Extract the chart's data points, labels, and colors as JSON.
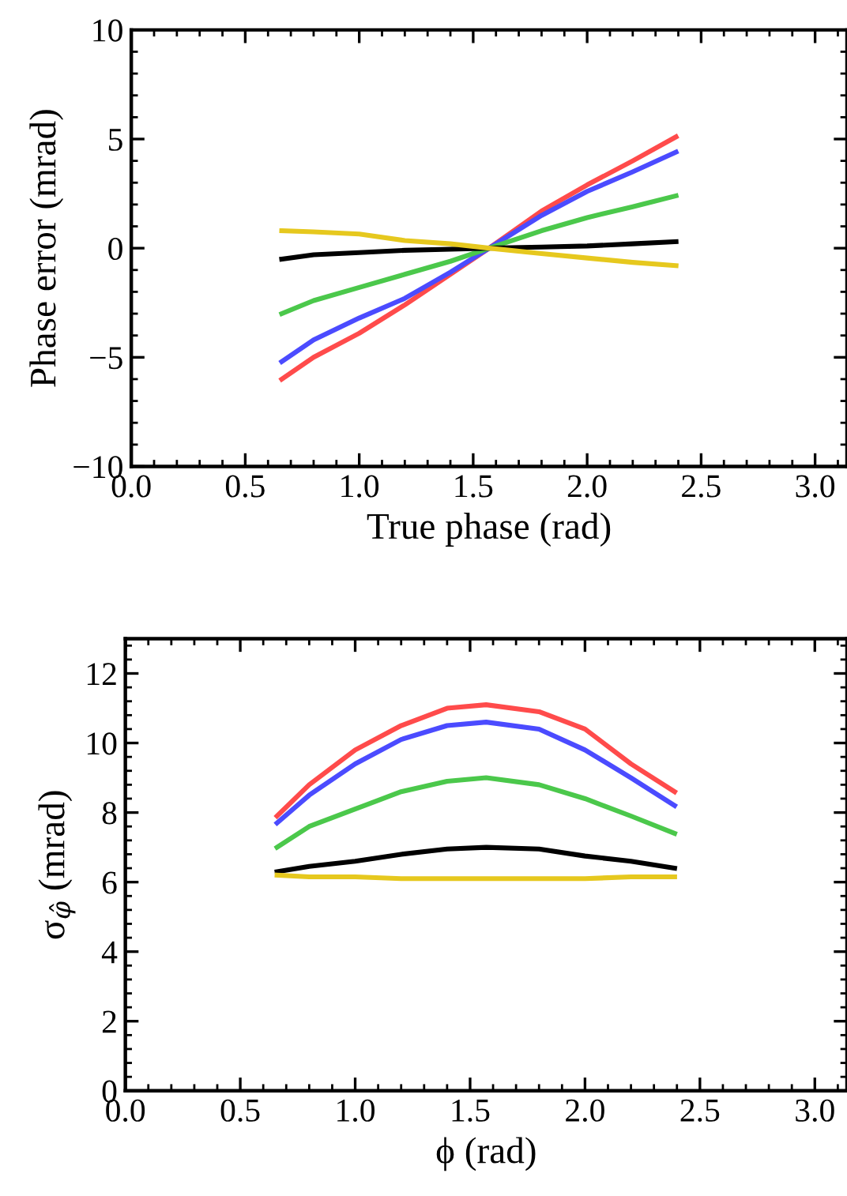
{
  "chart_data": [
    {
      "type": "line",
      "xlabel": "True phase (rad)",
      "ylabel": "Phase error (mrad)",
      "x": [
        0.66,
        0.8,
        1.0,
        1.2,
        1.4,
        1.57,
        1.8,
        2.0,
        2.2,
        2.39
      ],
      "series": [
        {
          "color": "#ff4b4b",
          "values": [
            -6.0,
            -5.0,
            -3.9,
            -2.6,
            -1.2,
            0,
            1.7,
            2.9,
            4.0,
            5.1
          ]
        },
        {
          "color": "#4b4bff",
          "values": [
            -5.2,
            -4.2,
            -3.2,
            -2.3,
            -1.1,
            0,
            1.5,
            2.6,
            3.5,
            4.4
          ]
        },
        {
          "color": "#4bc84b",
          "values": [
            -3.0,
            -2.4,
            -1.8,
            -1.2,
            -0.6,
            0,
            0.8,
            1.4,
            1.9,
            2.4
          ]
        },
        {
          "color": "#000000",
          "values": [
            -0.5,
            -0.3,
            -0.2,
            -0.1,
            -0.05,
            0,
            0.05,
            0.1,
            0.2,
            0.3
          ]
        },
        {
          "color": "#e6c81e",
          "values": [
            0.8,
            0.75,
            0.65,
            0.35,
            0.2,
            0,
            -0.25,
            -0.45,
            -0.65,
            -0.8
          ]
        }
      ],
      "xlim": [
        0,
        3.14
      ],
      "xticks": [
        {
          "value": 0,
          "label": "0.0"
        },
        {
          "value": 0.5,
          "label": "0.5"
        },
        {
          "value": 1,
          "label": "1.0"
        },
        {
          "value": 1.5,
          "label": "1.5"
        },
        {
          "value": 2,
          "label": "2.0"
        },
        {
          "value": 2.5,
          "label": "2.5"
        },
        {
          "value": 3,
          "label": "3.0"
        }
      ],
      "ylim": [
        -10,
        10
      ],
      "yticks": [
        {
          "value": -10,
          "label": "−10"
        },
        {
          "value": -5,
          "label": "−5"
        },
        0,
        5,
        10
      ],
      "grid": false,
      "legend": false,
      "line_style": "solid",
      "marker": "none"
    },
    {
      "type": "line",
      "xlabel": "ϕ (rad)",
      "ylabel": "σ$_{φ̂}$ (mrad)",
      "x": [
        0.66,
        0.8,
        1.0,
        1.2,
        1.4,
        1.57,
        1.8,
        2.0,
        2.2,
        2.39
      ],
      "series": [
        {
          "color": "#ff4b4b",
          "values": [
            7.9,
            8.8,
            9.8,
            10.5,
            11.0,
            11.1,
            10.9,
            10.4,
            9.4,
            8.6
          ]
        },
        {
          "color": "#4b4bff",
          "values": [
            7.7,
            8.5,
            9.4,
            10.1,
            10.5,
            10.6,
            10.4,
            9.8,
            9.0,
            8.2
          ]
        },
        {
          "color": "#4bc84b",
          "values": [
            7.0,
            7.6,
            8.1,
            8.6,
            8.9,
            9.0,
            8.8,
            8.4,
            7.9,
            7.4
          ]
        },
        {
          "color": "#000000",
          "values": [
            6.3,
            6.45,
            6.6,
            6.8,
            6.95,
            7.0,
            6.95,
            6.75,
            6.6,
            6.4
          ]
        },
        {
          "color": "#e6c81e",
          "values": [
            6.2,
            6.15,
            6.15,
            6.1,
            6.1,
            6.1,
            6.1,
            6.1,
            6.15,
            6.15
          ]
        }
      ],
      "xlim": [
        0,
        3.14
      ],
      "xticks": [
        {
          "value": 0,
          "label": "0.0"
        },
        {
          "value": 0.5,
          "label": "0.5"
        },
        {
          "value": 1,
          "label": "1.0"
        },
        {
          "value": 1.5,
          "label": "1.5"
        },
        {
          "value": 2,
          "label": "2.0"
        },
        {
          "value": 2.5,
          "label": "2.5"
        },
        {
          "value": 3,
          "label": "3.0"
        }
      ],
      "ylim": [
        0,
        13
      ],
      "yticks": [
        0,
        2,
        4,
        6,
        8,
        10,
        12
      ],
      "grid": false,
      "legend": false,
      "line_style": "solid",
      "marker": "none"
    }
  ]
}
